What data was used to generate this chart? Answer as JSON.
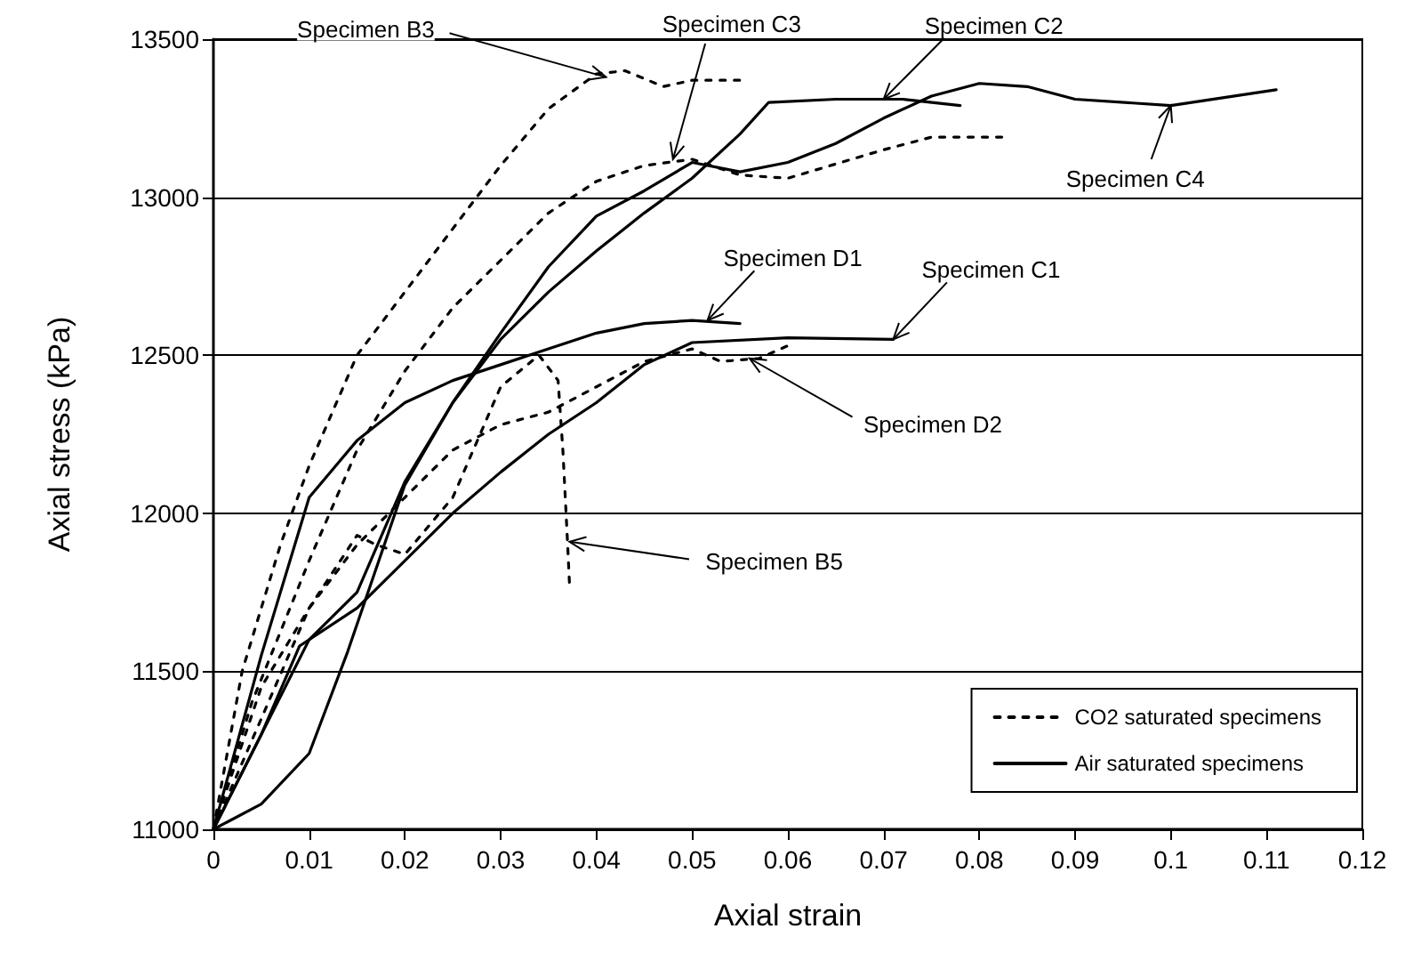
{
  "chart_data": {
    "type": "line",
    "xlabel": "Axial strain",
    "ylabel": "Axial stress (kPa)",
    "xlim": [
      0,
      0.12
    ],
    "xticks": [
      0,
      0.01,
      0.02,
      0.03,
      0.04,
      0.05,
      0.06,
      0.07,
      0.08,
      0.09,
      0.1,
      0.11,
      0.12
    ],
    "ylim": [
      11000,
      13500
    ],
    "yticks": [
      11000,
      11500,
      12000,
      12500,
      13000,
      13500
    ],
    "grid": "y",
    "legend": "bottom right",
    "marker": "none",
    "series": [
      {
        "name": "CO2 saturated specimens",
        "color": "#000000",
        "line_style": "dotted",
        "x": [
          0,
          0.003,
          0.007,
          0.01,
          0.015,
          0.02,
          0.025,
          0.03,
          0.035,
          0.04,
          0.043,
          0.047,
          0.05,
          0.055
        ],
        "values": [
          11000,
          11500,
          11900,
          12150,
          12500,
          12700,
          12900,
          13100,
          13280,
          13390,
          13400,
          13350,
          13370,
          13370
        ]
      },
      {
        "color": "#000000",
        "line_style": "dotted",
        "x": [
          0,
          0.004,
          0.01,
          0.015,
          0.02,
          0.025,
          0.03,
          0.035,
          0.04,
          0.045,
          0.05,
          0.055,
          0.06,
          0.07,
          0.075,
          0.083
        ],
        "values": [
          11000,
          11400,
          11850,
          12200,
          12450,
          12650,
          12800,
          12950,
          13050,
          13100,
          13120,
          13070,
          13060,
          13150,
          13190,
          13190
        ]
      },
      {
        "color": "#000000",
        "line_style": "dotted",
        "x": [
          0,
          0.005,
          0.01,
          0.015,
          0.017,
          0.02,
          0.025,
          0.03,
          0.034,
          0.036,
          0.0365,
          0.037,
          0.0372
        ],
        "values": [
          11000,
          11450,
          11700,
          11930,
          11900,
          11870,
          12050,
          12400,
          12500,
          12420,
          12200,
          11900,
          11770
        ]
      },
      {
        "color": "#000000",
        "line_style": "dotted",
        "x": [
          0,
          0.005,
          0.01,
          0.015,
          0.02,
          0.025,
          0.03,
          0.035,
          0.04,
          0.045,
          0.05,
          0.053,
          0.057,
          0.06
        ],
        "values": [
          11000,
          11350,
          11700,
          11900,
          12050,
          12200,
          12280,
          12320,
          12400,
          12480,
          12520,
          12480,
          12490,
          12530
        ]
      },
      {
        "name": "Air saturated specimens",
        "color": "#000000",
        "line_style": "solid",
        "x": [
          0,
          0.005,
          0.01,
          0.015,
          0.02,
          0.025,
          0.03,
          0.035,
          0.04,
          0.045,
          0.05,
          0.055
        ],
        "values": [
          11000,
          11550,
          12050,
          12230,
          12350,
          12420,
          12470,
          12520,
          12570,
          12600,
          12610,
          12600
        ]
      },
      {
        "color": "#000000",
        "line_style": "solid",
        "x": [
          0,
          0.005,
          0.009,
          0.015,
          0.02,
          0.025,
          0.03,
          0.035,
          0.04,
          0.045,
          0.05,
          0.06,
          0.071
        ],
        "values": [
          11000,
          11300,
          11580,
          11700,
          11850,
          12000,
          12130,
          12250,
          12350,
          12470,
          12540,
          12555,
          12550
        ]
      },
      {
        "color": "#000000",
        "line_style": "solid",
        "x": [
          0,
          0.005,
          0.01,
          0.015,
          0.02,
          0.025,
          0.03,
          0.035,
          0.04,
          0.045,
          0.05,
          0.055,
          0.058,
          0.065,
          0.072,
          0.078
        ],
        "values": [
          11000,
          11300,
          11600,
          11750,
          12100,
          12350,
          12550,
          12700,
          12830,
          12950,
          13060,
          13200,
          13300,
          13310,
          13310,
          13290
        ]
      },
      {
        "color": "#000000",
        "line_style": "solid",
        "x": [
          0,
          0.005,
          0.01,
          0.014,
          0.02,
          0.025,
          0.03,
          0.035,
          0.04,
          0.045,
          0.05,
          0.055,
          0.06,
          0.065,
          0.07,
          0.075,
          0.08,
          0.085,
          0.09,
          0.1,
          0.111
        ],
        "values": [
          11000,
          11080,
          11240,
          11560,
          12090,
          12350,
          12570,
          12780,
          12940,
          13020,
          13110,
          13080,
          13110,
          13170,
          13250,
          13320,
          13360,
          13350,
          13310,
          13290,
          13340
        ]
      }
    ],
    "annotations": [
      {
        "text": "Specimen B3",
        "x": 0.041,
        "y": 13380
      },
      {
        "text": "Specimen C3",
        "x": 0.048,
        "y": 13120
      },
      {
        "text": "Specimen C2",
        "x": 0.07,
        "y": 13310
      },
      {
        "text": "Specimen C4",
        "x": 0.1,
        "y": 13290
      },
      {
        "text": "Specimen D1",
        "x": 0.0516,
        "y": 12610
      },
      {
        "text": "Specimen C1",
        "x": 0.071,
        "y": 12550
      },
      {
        "text": "Specimen D2",
        "x": 0.056,
        "y": 12490
      },
      {
        "text": "Specimen B5",
        "x": 0.0372,
        "y": 11910
      }
    ]
  }
}
